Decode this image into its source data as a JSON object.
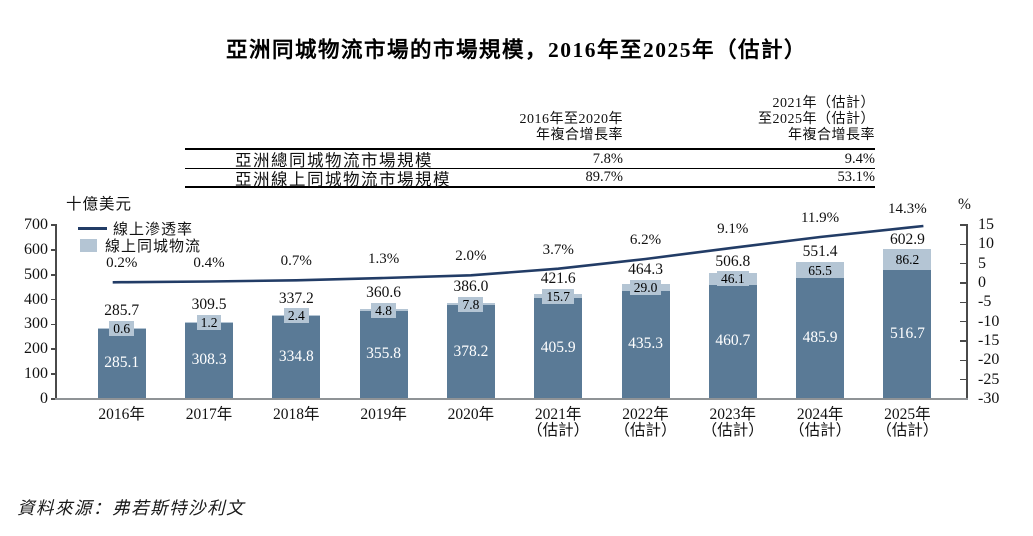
{
  "title": "亞洲同城物流市場的市場規模，2016年至2025年（估計）",
  "source": "資料來源：弗若斯特沙利文",
  "cagr_table": {
    "col_headers": [
      "2016年至2020年\n年複合增長率",
      "2021年（估計）\n至2025年（估計）\n年複合增長率"
    ],
    "rows": [
      {
        "label": "亞洲總同城物流市場規模",
        "cagr_2016_2020": "7.8%",
        "cagr_2021_2025": "9.4%"
      },
      {
        "label": "亞洲線上同城物流市場規模",
        "cagr_2016_2020": "89.7%",
        "cagr_2021_2025": "53.1%"
      }
    ]
  },
  "chart_data": {
    "type": "bar",
    "subtype": "stacked-bars-with-penetration-line",
    "left_axis": {
      "label": "十億美元",
      "min": 0,
      "max": 700,
      "step": 100
    },
    "right_axis": {
      "label": "%",
      "min": -30,
      "max": 15,
      "step": 5
    },
    "legend": [
      {
        "label": "線上滲透率",
        "swatch": "line"
      },
      {
        "label": "線上同城物流",
        "swatch": "square"
      }
    ],
    "categories": [
      "2016年",
      "2017年",
      "2018年",
      "2019年",
      "2020年",
      "2021年\n（估計）",
      "2022年\n（估計）",
      "2023年\n（估計）",
      "2024年\n（估計）",
      "2025年\n（估計）"
    ],
    "bars": {
      "totals": [
        "285.7",
        "309.5",
        "337.2",
        "360.6",
        "386.0",
        "421.6",
        "464.3",
        "506.8",
        "551.4",
        "602.9"
      ],
      "online_upper_segment": [
        "0.6",
        "1.2",
        "2.4",
        "4.8",
        "7.8",
        "15.7",
        "29.0",
        "46.1",
        "65.5",
        "86.2"
      ],
      "base_lower_segment": [
        "285.1",
        "308.3",
        "334.8",
        "355.8",
        "378.2",
        "405.9",
        "435.3",
        "460.7",
        "485.9",
        "516.7"
      ]
    },
    "line": {
      "name": "線上滲透率",
      "values_pct": [
        "0.2%",
        "0.4%",
        "0.7%",
        "1.3%",
        "2.0%",
        "3.7%",
        "6.2%",
        "9.1%",
        "11.9%",
        "14.3%"
      ]
    },
    "colors": {
      "bar_lower": "#5a7a96",
      "bar_upper": "#b4c5d4",
      "line": "#223c66"
    }
  }
}
